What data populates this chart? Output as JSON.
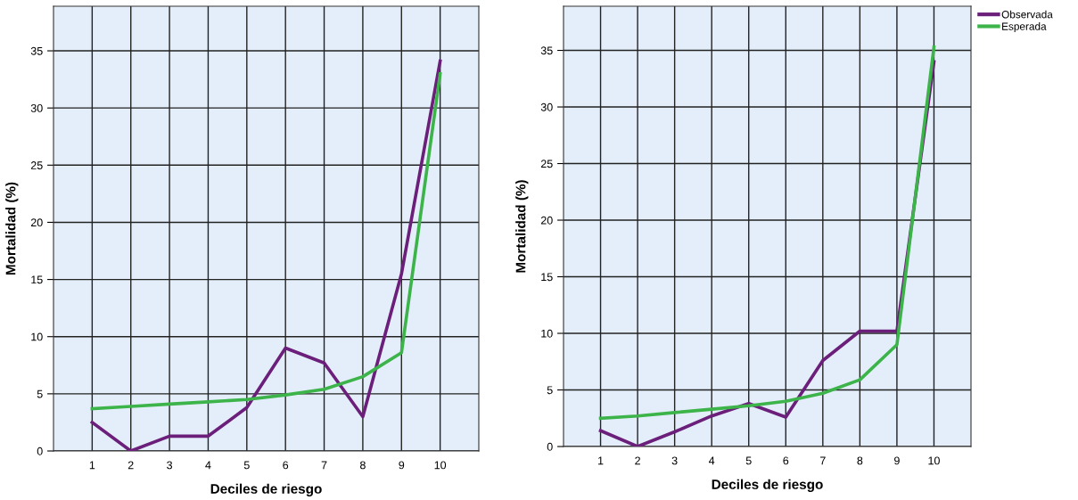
{
  "chart_data": [
    {
      "type": "line",
      "xlabel": "Deciles de riesgo",
      "ylabel": "Mortalidad (%)",
      "x": [
        1,
        2,
        3,
        4,
        5,
        6,
        7,
        8,
        9,
        10
      ],
      "xlim": [
        0,
        11
      ],
      "xticks": [
        1,
        2,
        3,
        4,
        5,
        6,
        7,
        8,
        9,
        10
      ],
      "ylim": [
        0,
        38.9
      ],
      "yticks": [
        0,
        5,
        10,
        15,
        20,
        25,
        30,
        35
      ],
      "grid": true,
      "legend": false,
      "marker": "none",
      "line_style": "solid",
      "series": [
        {
          "color": "#6b1f7a",
          "values": [
            2.5,
            0,
            1.3,
            1.3,
            3.8,
            9.0,
            7.7,
            3.0,
            15.5,
            34.1
          ]
        },
        {
          "color": "#3cb44a",
          "values": [
            3.7,
            3.9,
            4.1,
            4.3,
            4.5,
            4.9,
            5.4,
            6.5,
            8.6,
            33.0
          ]
        }
      ]
    },
    {
      "type": "line",
      "xlabel": "Deciles de riesgo",
      "ylabel": "Mortalidad (%)",
      "x": [
        1,
        2,
        3,
        4,
        5,
        6,
        7,
        8,
        9,
        10
      ],
      "xlim": [
        0,
        11
      ],
      "xticks": [
        1,
        2,
        3,
        4,
        5,
        6,
        7,
        8,
        9,
        10
      ],
      "ylim": [
        0,
        38.9
      ],
      "yticks": [
        0,
        5,
        10,
        15,
        20,
        25,
        30,
        35
      ],
      "grid": true,
      "legend": "top right",
      "marker": "none",
      "line_style": "solid",
      "series": [
        {
          "name": "Observada",
          "color": "#6b1f7a",
          "values": [
            1.4,
            0,
            1.3,
            2.7,
            3.8,
            2.6,
            7.6,
            10.2,
            10.2,
            34.0
          ]
        },
        {
          "name": "Esperada",
          "color": "#3cb44a",
          "values": [
            2.5,
            2.7,
            3.0,
            3.3,
            3.6,
            4.0,
            4.7,
            5.9,
            9.0,
            35.3
          ]
        }
      ]
    }
  ]
}
